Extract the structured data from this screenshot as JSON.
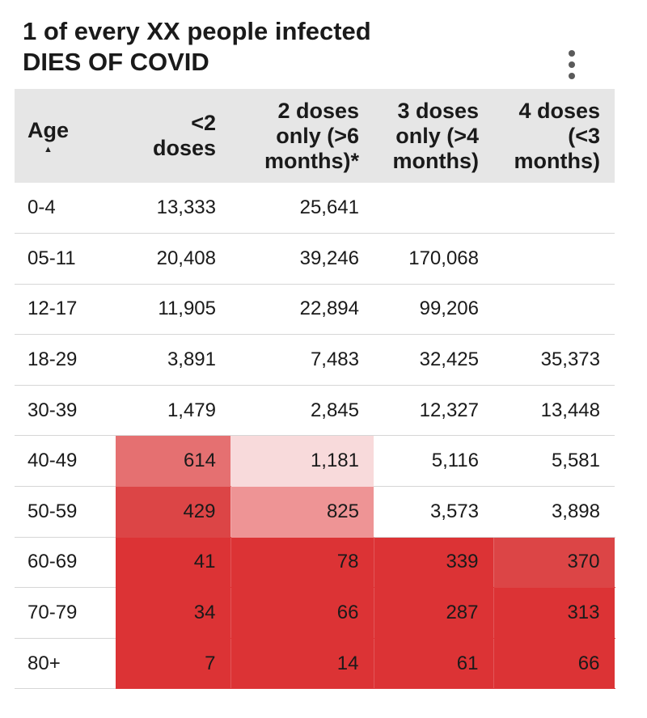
{
  "header": {
    "title_line1": "1 of every XX people infected",
    "title_line2": "DIES OF COVID",
    "more_icon": "more-vertical-icon",
    "sort_icon_glyph": "▲"
  },
  "colors": {
    "header_bg": "#e6e6e6",
    "heat_scale": [
      "#ffffff",
      "#f8dadb",
      "#ee9495",
      "#e57071",
      "#dc4546",
      "#dc3335"
    ]
  },
  "chart_data": {
    "type": "table",
    "title": "1 of every XX people infected DIES OF COVID",
    "columns": [
      "Age",
      "<2\ndoses",
      "2 doses\nonly (>6\nmonths)*",
      "3 doses\nonly (>4\nmonths)",
      "4 doses\n(<3\nmonths)"
    ],
    "sorted_by": "Age",
    "sort_direction": "ascending",
    "rows": [
      {
        "age": "0-4",
        "values": [
          "13,333",
          "25,641",
          "",
          ""
        ],
        "shade": [
          0,
          0,
          0,
          0
        ]
      },
      {
        "age": "05-11",
        "values": [
          "20,408",
          "39,246",
          "170,068",
          ""
        ],
        "shade": [
          0,
          0,
          0,
          0
        ]
      },
      {
        "age": "12-17",
        "values": [
          "11,905",
          "22,894",
          "99,206",
          ""
        ],
        "shade": [
          0,
          0,
          0,
          0
        ]
      },
      {
        "age": "18-29",
        "values": [
          "3,891",
          "7,483",
          "32,425",
          "35,373"
        ],
        "shade": [
          0,
          0,
          0,
          0
        ]
      },
      {
        "age": "30-39",
        "values": [
          "1,479",
          "2,845",
          "12,327",
          "13,448"
        ],
        "shade": [
          0,
          0,
          0,
          0
        ]
      },
      {
        "age": "40-49",
        "values": [
          "614",
          "1,181",
          "5,116",
          "5,581"
        ],
        "shade": [
          3,
          1,
          0,
          0
        ]
      },
      {
        "age": "50-59",
        "values": [
          "429",
          "825",
          "3,573",
          "3,898"
        ],
        "shade": [
          4,
          2,
          0,
          0
        ]
      },
      {
        "age": "60-69",
        "values": [
          "41",
          "78",
          "339",
          "370"
        ],
        "shade": [
          5,
          5,
          5,
          4
        ]
      },
      {
        "age": "70-79",
        "values": [
          "34",
          "66",
          "287",
          "313"
        ],
        "shade": [
          5,
          5,
          5,
          5
        ]
      },
      {
        "age": "80+",
        "values": [
          "7",
          "14",
          "61",
          "66"
        ],
        "shade": [
          5,
          5,
          5,
          5
        ]
      }
    ]
  }
}
